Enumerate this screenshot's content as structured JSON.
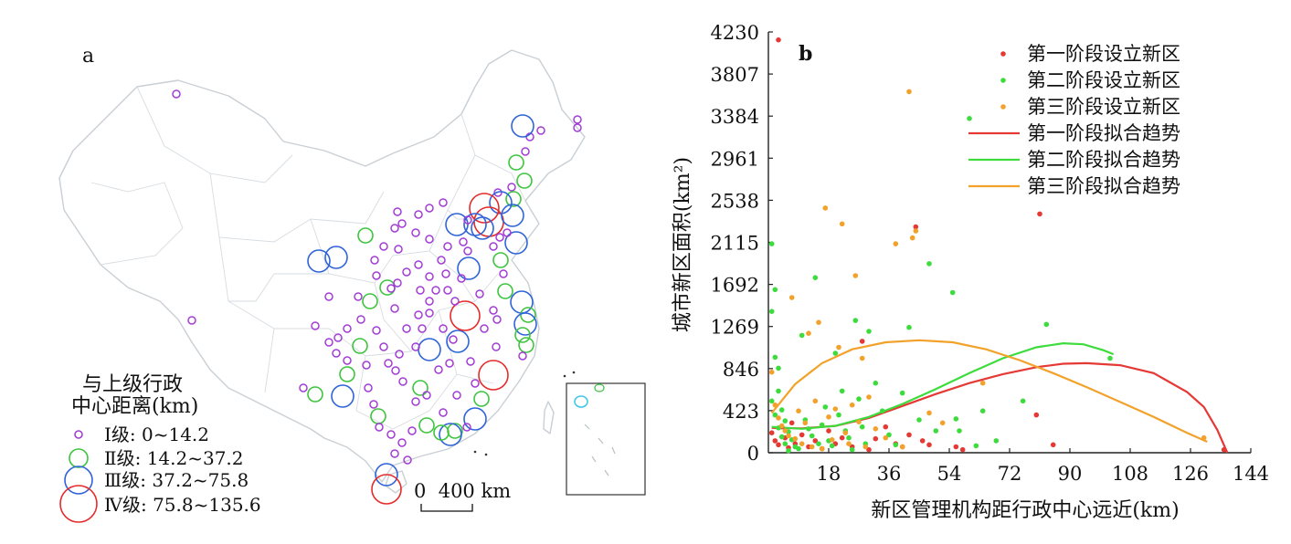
{
  "map": {
    "panel_label": "a",
    "legend_title_line1": "与上级行政",
    "legend_title_line2": "中心距离(km)",
    "legend": [
      {
        "label": "Ⅰ级: 0~14.2",
        "color": "#a23cd6"
      },
      {
        "label": "Ⅱ级: 14.2~37.2",
        "color": "#3dc43d"
      },
      {
        "label": "Ⅲ级: 37.2~75.8",
        "color": "#2f64d8"
      },
      {
        "label": "Ⅳ级: 75.8~135.6",
        "color": "#e52b2b"
      }
    ],
    "scale_label": "0  400 km"
  },
  "chart_data": {
    "type": "scatter",
    "panel_label": "b",
    "xlabel": "新区管理机构距行政中心远近(km)",
    "ylabel": "城市新区面积(km²)",
    "xlim": [
      0,
      144
    ],
    "ylim": [
      0,
      4230
    ],
    "x_ticks": [
      "18",
      "36",
      "54",
      "72",
      "90",
      "108",
      "126",
      "144"
    ],
    "x_tick_values": [
      18,
      36,
      54,
      72,
      90,
      108,
      126,
      144
    ],
    "y_ticks": [
      "0",
      "423",
      "846",
      "1269",
      "1692",
      "2115",
      "2538",
      "2961",
      "3384",
      "3807",
      "4230"
    ],
    "y_tick_values": [
      0,
      423,
      846,
      1269,
      1692,
      2115,
      2538,
      2961,
      3384,
      3807,
      4230
    ],
    "legend": [
      {
        "label": "第一阶段设立新区",
        "kind": "point",
        "color": "#e53935"
      },
      {
        "label": "第二阶段设立新区",
        "kind": "point",
        "color": "#3ddc3d"
      },
      {
        "label": "第三阶段设立新区",
        "kind": "point",
        "color": "#f2a22a"
      },
      {
        "label": "第一阶段拟合趋势",
        "kind": "line",
        "color": "#e53935"
      },
      {
        "label": "第二阶段拟合趋势",
        "kind": "line",
        "color": "#3ddc3d"
      },
      {
        "label": "第三阶段拟合趋势",
        "kind": "line",
        "color": "#f2a22a"
      }
    ],
    "series": [
      {
        "name": "第一阶段设立新区",
        "color": "#e53935",
        "points": [
          [
            3,
            4150
          ],
          [
            1,
            200
          ],
          [
            2,
            120
          ],
          [
            3,
            80
          ],
          [
            4,
            260
          ],
          [
            5,
            150
          ],
          [
            6,
            50
          ],
          [
            7,
            300
          ],
          [
            8,
            90
          ],
          [
            10,
            180
          ],
          [
            12,
            60
          ],
          [
            14,
            120
          ],
          [
            16,
            40
          ],
          [
            18,
            220
          ],
          [
            20,
            90
          ],
          [
            22,
            150
          ],
          [
            25,
            60
          ],
          [
            28,
            1120
          ],
          [
            30,
            30
          ],
          [
            32,
            140
          ],
          [
            35,
            260
          ],
          [
            38,
            90
          ],
          [
            40,
            60
          ],
          [
            42,
            180
          ],
          [
            44,
            2270
          ],
          [
            46,
            120
          ],
          [
            48,
            80
          ],
          [
            56,
            60
          ],
          [
            58,
            30
          ],
          [
            80,
            380
          ],
          [
            81,
            2400
          ],
          [
            85,
            80
          ],
          [
            136,
            30
          ]
        ]
      },
      {
        "name": "第二阶段设立新区",
        "color": "#3ddc3d",
        "points": [
          [
            1,
            2100
          ],
          [
            2,
            1640
          ],
          [
            1,
            1420
          ],
          [
            2,
            960
          ],
          [
            3,
            850
          ],
          [
            3,
            620
          ],
          [
            1,
            520
          ],
          [
            4,
            430
          ],
          [
            2,
            380
          ],
          [
            5,
            320
          ],
          [
            3,
            250
          ],
          [
            6,
            210
          ],
          [
            4,
            160
          ],
          [
            7,
            130
          ],
          [
            5,
            90
          ],
          [
            8,
            60
          ],
          [
            9,
            40
          ],
          [
            6,
            20
          ],
          [
            10,
            1180
          ],
          [
            11,
            330
          ],
          [
            12,
            240
          ],
          [
            13,
            170
          ],
          [
            14,
            1760
          ],
          [
            15,
            90
          ],
          [
            16,
            280
          ],
          [
            17,
            460
          ],
          [
            18,
            120
          ],
          [
            19,
            70
          ],
          [
            20,
            1000
          ],
          [
            21,
            380
          ],
          [
            22,
            620
          ],
          [
            23,
            220
          ],
          [
            24,
            150
          ],
          [
            25,
            30
          ],
          [
            26,
            1330
          ],
          [
            27,
            540
          ],
          [
            28,
            260
          ],
          [
            29,
            90
          ],
          [
            30,
            1220
          ],
          [
            32,
            700
          ],
          [
            34,
            420
          ],
          [
            36,
            180
          ],
          [
            38,
            80
          ],
          [
            40,
            600
          ],
          [
            42,
            1260
          ],
          [
            45,
            330
          ],
          [
            48,
            1900
          ],
          [
            50,
            220
          ],
          [
            55,
            1610
          ],
          [
            56,
            340
          ],
          [
            57,
            220
          ],
          [
            60,
            3360
          ],
          [
            62,
            70
          ],
          [
            64,
            420
          ],
          [
            68,
            120
          ],
          [
            76,
            520
          ],
          [
            83,
            1290
          ],
          [
            102,
            950
          ]
        ]
      },
      {
        "name": "第三阶段设立新区",
        "color": "#f2a22a",
        "points": [
          [
            1,
            810
          ],
          [
            2,
            480
          ],
          [
            3,
            350
          ],
          [
            4,
            270
          ],
          [
            5,
            220
          ],
          [
            6,
            170
          ],
          [
            7,
            1560
          ],
          [
            8,
            140
          ],
          [
            9,
            420
          ],
          [
            10,
            90
          ],
          [
            11,
            300
          ],
          [
            12,
            1200
          ],
          [
            13,
            60
          ],
          [
            14,
            520
          ],
          [
            15,
            1310
          ],
          [
            16,
            40
          ],
          [
            17,
            2460
          ],
          [
            18,
            360
          ],
          [
            19,
            130
          ],
          [
            20,
            440
          ],
          [
            21,
            1060
          ],
          [
            22,
            2300
          ],
          [
            23,
            200
          ],
          [
            24,
            90
          ],
          [
            25,
            480
          ],
          [
            26,
            1780
          ],
          [
            27,
            310
          ],
          [
            28,
            950
          ],
          [
            29,
            60
          ],
          [
            30,
            560
          ],
          [
            32,
            240
          ],
          [
            35,
            150
          ],
          [
            38,
            2100
          ],
          [
            40,
            60
          ],
          [
            42,
            3630
          ],
          [
            43,
            2160
          ],
          [
            44,
            2230
          ],
          [
            48,
            400
          ],
          [
            52,
            300
          ],
          [
            64,
            700
          ],
          [
            130,
            150
          ]
        ]
      }
    ],
    "trend_lines": [
      {
        "name": "第一阶段拟合趋势",
        "color": "#e53935",
        "points": [
          [
            1,
            250
          ],
          [
            10,
            245
          ],
          [
            20,
            270
          ],
          [
            30,
            350
          ],
          [
            40,
            470
          ],
          [
            50,
            590
          ],
          [
            60,
            700
          ],
          [
            70,
            790
          ],
          [
            80,
            860
          ],
          [
            88,
            895
          ],
          [
            95,
            900
          ],
          [
            105,
            880
          ],
          [
            115,
            800
          ],
          [
            125,
            610
          ],
          [
            130,
            460
          ],
          [
            134,
            230
          ],
          [
            137,
            0
          ]
        ]
      },
      {
        "name": "第二阶段拟合趋势",
        "color": "#3ddc3d",
        "points": [
          [
            1,
            260
          ],
          [
            10,
            240
          ],
          [
            20,
            270
          ],
          [
            30,
            360
          ],
          [
            40,
            490
          ],
          [
            50,
            640
          ],
          [
            60,
            800
          ],
          [
            70,
            950
          ],
          [
            80,
            1060
          ],
          [
            88,
            1100
          ],
          [
            94,
            1090
          ],
          [
            100,
            1030
          ],
          [
            103,
            990
          ]
        ]
      },
      {
        "name": "第三阶段拟合趋势",
        "color": "#f2a22a",
        "points": [
          [
            1,
            400
          ],
          [
            8,
            690
          ],
          [
            16,
            900
          ],
          [
            25,
            1040
          ],
          [
            35,
            1110
          ],
          [
            45,
            1130
          ],
          [
            55,
            1110
          ],
          [
            65,
            1040
          ],
          [
            75,
            930
          ],
          [
            85,
            800
          ],
          [
            95,
            660
          ],
          [
            105,
            510
          ],
          [
            115,
            360
          ],
          [
            125,
            200
          ],
          [
            131,
            110
          ]
        ]
      }
    ]
  }
}
